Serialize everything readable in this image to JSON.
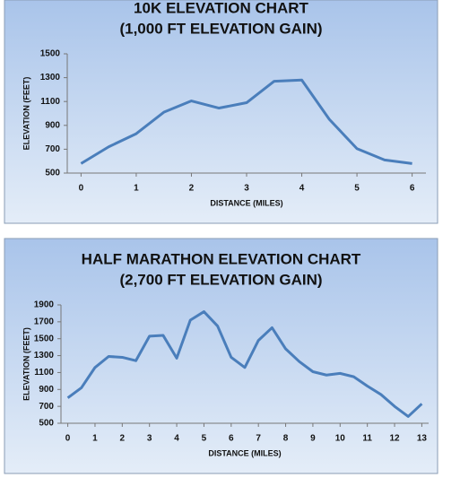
{
  "chart_data": [
    {
      "type": "line",
      "title": "10K ELEVATION CHART",
      "subtitle": "(1,000 FT ELEVATION GAIN)",
      "x_label": "DISTANCE (MILES)",
      "y_label": "ELEVATION (FEET)",
      "x": [
        0,
        0.5,
        1,
        1.5,
        2,
        2.5,
        3,
        3.5,
        4,
        4.5,
        5,
        5.5,
        6
      ],
      "series": [
        {
          "color": "#4a7ebb",
          "values": [
            580,
            720,
            830,
            1010,
            1105,
            1045,
            1090,
            1270,
            1280,
            950,
            705,
            610,
            580
          ]
        }
      ],
      "xlim": [
        -0.25,
        6.25
      ],
      "xticks": [
        0,
        1,
        2,
        3,
        4,
        5,
        6
      ],
      "ylim": [
        500,
        1500
      ],
      "yticks": [
        500,
        700,
        900,
        1100,
        1300,
        1500
      ],
      "grid": false
    },
    {
      "type": "line",
      "title": "HALF MARATHON ELEVATION CHART",
      "subtitle": "(2,700 FT ELEVATION GAIN)",
      "x_label": "DISTANCE (MILES)",
      "y_label": "ELEVATION (FEET)",
      "x": [
        0,
        0.5,
        1,
        1.5,
        2,
        2.5,
        3,
        3.5,
        4,
        4.5,
        5,
        5.5,
        6,
        6.5,
        7,
        7.5,
        8,
        8.5,
        9,
        9.5,
        10,
        10.5,
        11,
        11.5,
        12,
        12.5,
        13
      ],
      "series": [
        {
          "color": "#4a7ebb",
          "values": [
            800,
            920,
            1160,
            1290,
            1280,
            1240,
            1530,
            1540,
            1270,
            1720,
            1820,
            1650,
            1280,
            1160,
            1480,
            1630,
            1380,
            1230,
            1110,
            1070,
            1090,
            1050,
            940,
            840,
            700,
            580,
            730
          ]
        }
      ],
      "xlim": [
        -0.25,
        13.25
      ],
      "xticks": [
        0,
        1,
        2,
        3,
        4,
        5,
        6,
        7,
        8,
        9,
        10,
        11,
        12,
        13
      ],
      "ylim": [
        500,
        1900
      ],
      "yticks": [
        500,
        700,
        900,
        1100,
        1300,
        1500,
        1700,
        1900
      ],
      "grid": false
    }
  ]
}
